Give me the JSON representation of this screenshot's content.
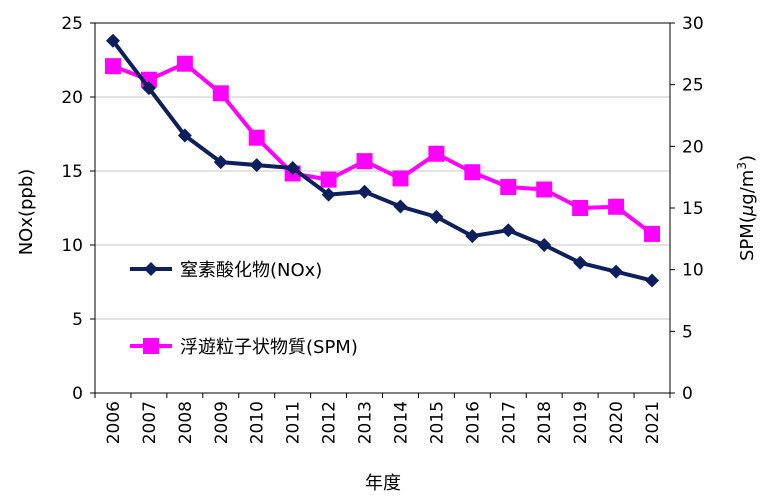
{
  "chart_data": {
    "type": "line",
    "title": "",
    "xlabel": "年度",
    "ylabel_left": "NOx(ppb)",
    "ylabel_right_prefix": "SPM(",
    "ylabel_right_unit_mu": "μ",
    "ylabel_right_unit_rest": "g/m",
    "ylabel_right_unit_exp": "3",
    "ylabel_right_suffix": ")",
    "ylim_left": [
      0,
      25
    ],
    "ylim_right": [
      0,
      30
    ],
    "yticks_left": [
      "0",
      "5",
      "10",
      "15",
      "20",
      "25"
    ],
    "yticks_right": [
      "0",
      "5",
      "10",
      "15",
      "20",
      "25",
      "30"
    ],
    "grid": true,
    "legend_position": "inside-left",
    "categories": [
      "2006",
      "2007",
      "2008",
      "2009",
      "2010",
      "2011",
      "2012",
      "2013",
      "2014",
      "2015",
      "2016",
      "2017",
      "2018",
      "2019",
      "2020",
      "2021"
    ],
    "series": [
      {
        "name": "窒素酸化物(NOx)",
        "axis": "left",
        "marker": "diamond",
        "color": "#0d1f5c",
        "values": [
          23.8,
          20.6,
          17.4,
          15.6,
          15.4,
          15.2,
          13.4,
          13.6,
          12.6,
          11.9,
          10.6,
          11.0,
          10.0,
          8.8,
          8.2,
          7.6
        ]
      },
      {
        "name": "浮遊粒子状物質(SPM)",
        "axis": "right",
        "marker": "square",
        "color": "#ff00ff",
        "values": [
          26.5,
          25.4,
          26.7,
          24.3,
          20.7,
          17.8,
          17.3,
          18.8,
          17.4,
          19.4,
          17.9,
          16.7,
          16.5,
          15.0,
          15.1,
          12.9
        ]
      }
    ]
  }
}
